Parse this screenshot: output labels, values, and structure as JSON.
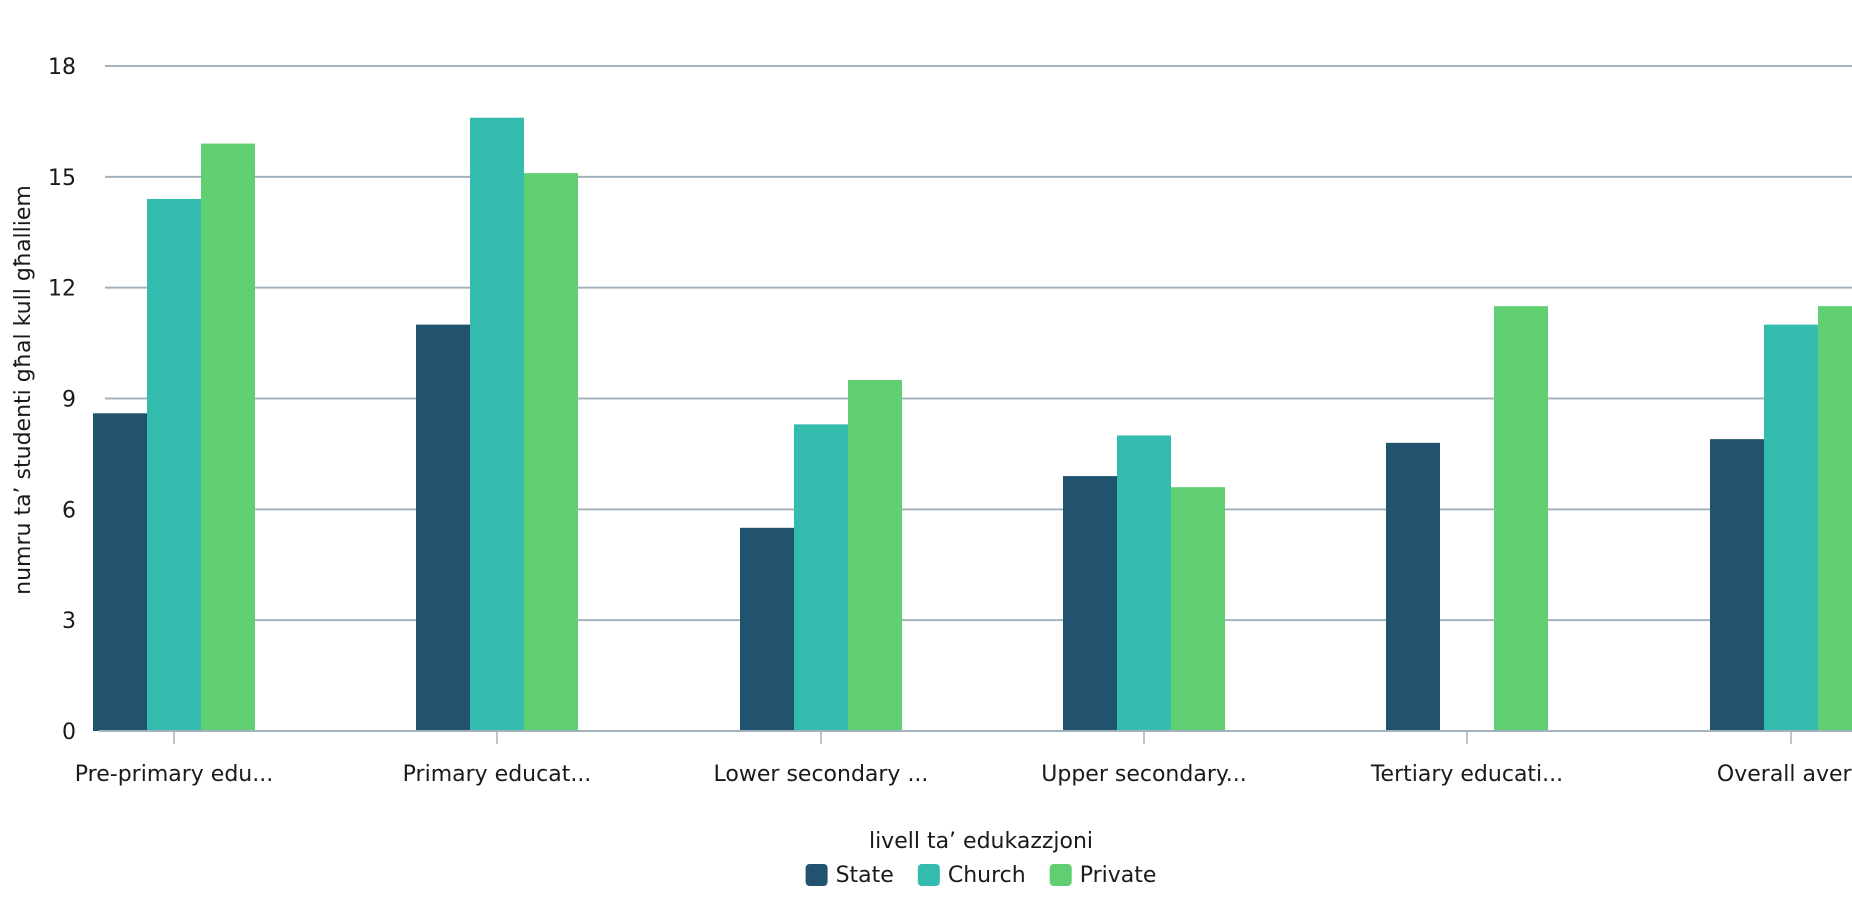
{
  "chart_data": {
    "type": "bar",
    "categories": [
      "Pre-primary edu...",
      "Primary educat...",
      "Lower secondary ...",
      "Upper secondary...",
      "Tertiary educati...",
      "Overall avera"
    ],
    "series": [
      {
        "name": "State",
        "color": "#21536f",
        "values": [
          8.6,
          11.0,
          5.5,
          6.9,
          7.8,
          7.9
        ]
      },
      {
        "name": "Church",
        "color": "#33bbad",
        "values": [
          14.4,
          16.6,
          8.3,
          8.0,
          null,
          11.0
        ]
      },
      {
        "name": "Private",
        "color": "#60cf71",
        "values": [
          15.9,
          15.1,
          9.5,
          6.6,
          11.5,
          11.5
        ]
      }
    ],
    "yticks": [
      "0",
      "3",
      "6",
      "9",
      "12",
      "15",
      "18"
    ],
    "ylim": [
      0,
      18
    ],
    "xlabel": "livell ta’ edukazzjoni",
    "ylabel": "numru ta’ studenti għal kull għalliem",
    "grid": true,
    "legend_position": "bottom-center"
  }
}
